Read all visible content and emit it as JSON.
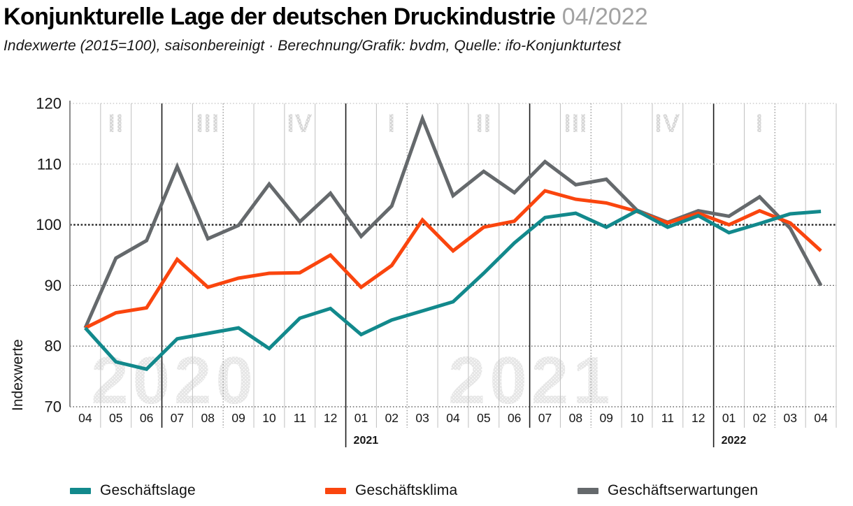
{
  "header": {
    "title": "Konjunkturelle Lage der deutschen Druckindustrie",
    "period": "04/2022",
    "subtitle": "Indexwerte (2015=100), saisonbereinigt · Berechnung/Grafik: bvdm, Quelle: ifo-Konjunkturtest"
  },
  "legend": {
    "items": [
      {
        "label": "Geschäftslage",
        "color": "#12898C"
      },
      {
        "label": "Geschäftsklima",
        "color": "#FA450E"
      },
      {
        "label": "Geschäftserwartungen",
        "color": "#65696C"
      }
    ]
  },
  "chart_data": {
    "type": "line",
    "title": "Konjunkturelle Lage der deutschen Druckindustrie 04/2022",
    "ylabel": "Indexwerte",
    "ylim": [
      70,
      120
    ],
    "yticks": [
      70,
      80,
      90,
      100,
      110,
      120
    ],
    "grid": {
      "horizontal": "dotted",
      "vertical": "monthly",
      "emphasized_hline": 100
    },
    "legend_position": "bottom",
    "x_months": [
      "04",
      "05",
      "06",
      "07",
      "08",
      "09",
      "10",
      "11",
      "12",
      "01",
      "02",
      "03",
      "04",
      "05",
      "06",
      "07",
      "08",
      "09",
      "10",
      "11",
      "12",
      "01",
      "02",
      "03",
      "04"
    ],
    "x_year_labels": [
      {
        "text": "2021",
        "boundary_index": 9
      },
      {
        "text": "2022",
        "boundary_index": 21
      }
    ],
    "quarter_labels": [
      {
        "label": "II",
        "month_index": 1
      },
      {
        "label": "III",
        "month_index": 4
      },
      {
        "label": "IV",
        "month_index": 7
      },
      {
        "label": "I",
        "month_index": 10
      },
      {
        "label": "II",
        "month_index": 13
      },
      {
        "label": "III",
        "month_index": 16
      },
      {
        "label": "IV",
        "month_index": 19
      },
      {
        "label": "I",
        "month_index": 22
      }
    ],
    "year_watermarks": [
      {
        "text": "2020",
        "center_month_index": 2.9
      },
      {
        "text": "2021",
        "center_month_index": 14.55
      }
    ],
    "series": [
      {
        "name": "Geschäftslage",
        "color": "#12898C",
        "values": [
          83.0,
          77.4,
          76.2,
          81.2,
          82.1,
          83.0,
          79.6,
          84.6,
          86.2,
          81.9,
          84.3,
          85.8,
          87.3,
          92.0,
          97.0,
          101.2,
          101.9,
          99.6,
          102.3,
          99.6,
          101.5,
          98.7,
          100.2,
          101.8,
          102.2
        ]
      },
      {
        "name": "Geschäftsklima",
        "color": "#FA450E",
        "values": [
          83.0,
          85.5,
          86.3,
          94.3,
          89.7,
          91.2,
          92.0,
          92.1,
          95.0,
          89.7,
          93.3,
          100.8,
          95.7,
          99.6,
          100.6,
          105.6,
          104.2,
          103.6,
          102.2,
          100.3,
          101.9,
          100.0,
          102.3,
          100.3,
          95.7
        ]
      },
      {
        "name": "Geschäftserwartungen",
        "color": "#65696C",
        "values": [
          83.0,
          94.5,
          97.4,
          109.6,
          97.7,
          99.9,
          106.7,
          100.5,
          105.2,
          98.1,
          103.1,
          117.5,
          104.8,
          108.8,
          105.3,
          110.4,
          106.6,
          107.5,
          102.4,
          100.4,
          102.3,
          101.4,
          104.6,
          99.4,
          90.0
        ]
      }
    ]
  }
}
